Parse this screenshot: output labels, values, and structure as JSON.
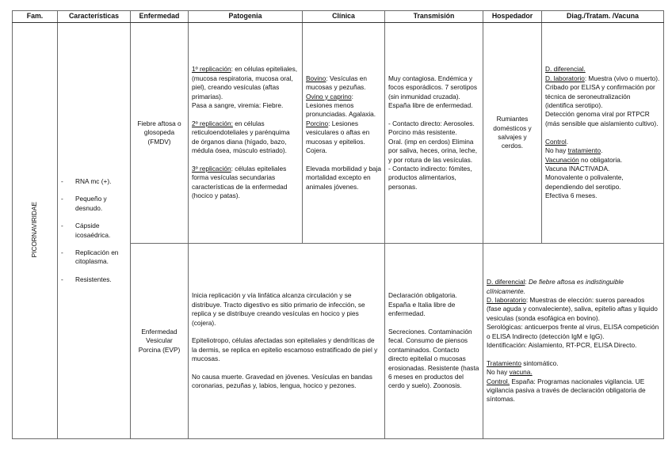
{
  "headers": [
    "Fam.",
    "Características",
    "Enfermedad",
    "Patogenia",
    "Clínica",
    "Transmisión",
    "Hospedador",
    "Diag./Tratam. /Vacuna"
  ],
  "family": "PICORNAVIRIDAE",
  "characteristics": {
    "bullet": "-",
    "items": [
      "RNA mc (+).",
      "Pequeño y desnudo.",
      "Cápside icosaédrica.",
      "Replicación en citoplasma.",
      "Resistentes."
    ]
  },
  "rows": [
    {
      "disease": "Fiebre aftosa o glosopeda (FMDV)",
      "host": "Rumiantes domésticos y salvajes y cerdos.",
      "patogenia": [
        {
          "segs": [
            {
              "t": "1º replicación",
              "s": "u"
            },
            {
              "t": ": en células epiteliales, (mucosa respiratoria, mucosa oral, piel), creando vesículas (aftas primarias)."
            }
          ]
        },
        {
          "segs": [
            {
              "t": "Pasa a sangre, viremia: Fiebre."
            }
          ]
        },
        {
          "gap": true,
          "segs": [
            {
              "t": "2º replicación:",
              "s": "u"
            },
            {
              "t": " en células reticuloendoteliales y parénquima de órganos diana (hígado, bazo, médula ósea, músculo estriado)."
            }
          ]
        },
        {
          "gap": true,
          "segs": [
            {
              "t": "3º replicación",
              "s": "u"
            },
            {
              "t": ": células epiteliales forma vesículas secundarias características de la enfermedad (hocico y patas)."
            }
          ]
        }
      ],
      "clinica": [
        {
          "segs": [
            {
              "t": "Bovino",
              "s": "u"
            },
            {
              "t": ": Vesículas en mucosas y pezuñas."
            }
          ]
        },
        {
          "segs": [
            {
              "t": "Ovino y caprino",
              "s": "u"
            },
            {
              "t": ": Lesiones menos pronunciadas. Agalaxia."
            }
          ]
        },
        {
          "segs": [
            {
              "t": "Porcino",
              "s": "u"
            },
            {
              "t": ": Lesiones vesiculares o aftas en mucosas y epitelios. Cojera."
            }
          ]
        },
        {
          "gap": true,
          "segs": [
            {
              "t": "Elevada morbilidad y baja mortalidad excepto en animales jóvenes."
            }
          ]
        }
      ],
      "transmision": [
        {
          "segs": [
            {
              "t": "Muy contagiosa. Endémica y focos esporádicos. 7 serotipos (sin inmunidad cruzada). España libre de enfermedad."
            }
          ]
        },
        {
          "gap": true,
          "segs": [
            {
              "t": "-      Contacto directo: Aerosoles. Porcino más resistente."
            }
          ]
        },
        {
          "segs": [
            {
              "t": "Oral. (imp en cerdos) Elimina por saliva, heces, orina, leche, y por rotura de las vesículas."
            }
          ]
        },
        {
          "segs": [
            {
              "t": "-      Contacto indirecto: fómites, productos alimentarios, personas."
            }
          ]
        }
      ],
      "diag": [
        {
          "segs": [
            {
              "t": "D. diferencial.",
              "s": "u"
            }
          ]
        },
        {
          "segs": [
            {
              "t": "D. laboratorio",
              "s": "u"
            },
            {
              "t": ": Muestra (vivo o muerto)."
            }
          ]
        },
        {
          "segs": [
            {
              "t": "Cribado por ELISA y confirmación por técnica de seroneutralización (identifica serotipo)."
            }
          ]
        },
        {
          "segs": [
            {
              "t": "Detección genoma viral por RTPCR (más sensible que aislamiento cultivo)."
            }
          ]
        },
        {
          "gap": true,
          "segs": [
            {
              "t": "Control",
              "s": "u"
            },
            {
              "t": "."
            }
          ]
        },
        {
          "segs": [
            {
              "t": "No hay "
            },
            {
              "t": "tratamiento",
              "s": "u"
            },
            {
              "t": "."
            }
          ]
        },
        {
          "segs": [
            {
              "t": "Vacunación",
              "s": "u"
            },
            {
              "t": " no obligatoria."
            }
          ]
        },
        {
          "segs": [
            {
              "t": "Vacuna INACTIVADA."
            }
          ]
        },
        {
          "segs": [
            {
              "t": "Monovalente o polivalente, dependiendo del serotipo."
            }
          ]
        },
        {
          "segs": [
            {
              "t": "Efectiva 6 meses."
            }
          ]
        }
      ]
    },
    {
      "disease": "Enfermedad Vesicular Porcina (EVP)",
      "host": "",
      "patogenia": [
        {
          "segs": [
            {
              "t": "Inicia replicación y vía linfática alcanza circulación y se distribuye. Tracto digestivo es sitio primario de infección, se replica y se distribuye creando vesículas en hocico y pies (cojera)."
            }
          ]
        },
        {
          "gap": true,
          "segs": [
            {
              "t": "Epiteliotropo, células afectadas son epiteliales y dendríticas de la dermis, se replica en epitelio escamoso estratificado de piel y mucosas."
            }
          ]
        },
        {
          "gap": true,
          "segs": [
            {
              "t": "No causa muerte. Gravedad en jóvenes. Vesículas en bandas coronarias, pezuñas y, labios, lengua, hocico y pezones."
            }
          ]
        }
      ],
      "clinica": [],
      "transmision": [
        {
          "segs": [
            {
              "t": "Declaración obligatoria. España e Italia libre de enfermedad."
            }
          ]
        },
        {
          "gap": true,
          "segs": [
            {
              "t": "Secreciones. Contaminación fecal. Consumo de piensos contaminados. Contacto directo epitelial o mucosas erosionadas. Resistente (hasta 6 meses en productos del cerdo y suelo). Zoonosis."
            }
          ]
        }
      ],
      "diag": [
        {
          "segs": [
            {
              "t": "D. diferencial",
              "s": "u"
            },
            {
              "t": ": "
            },
            {
              "t": "De fiebre aftosa es indistinguible clínicamente.",
              "s": "i"
            }
          ]
        },
        {
          "segs": [
            {
              "t": "D. laboratorio",
              "s": "u"
            },
            {
              "t": ": Muestras de elección: sueros pareados (fase aguda y convaleciente), saliva, epitelio aftas y liquido vesiculas (sonda esofágica en bovino)."
            }
          ]
        },
        {
          "segs": [
            {
              "t": "Serológicas: anticuerpos frente al virus, ELISA competición o ELISA Indirecto (detección IgM e IgG)."
            }
          ]
        },
        {
          "segs": [
            {
              "t": "Identificación: Aislamiento, RT-PCR, ELISA Directo."
            }
          ]
        },
        {
          "gap": true,
          "segs": [
            {
              "t": "Tratamiento",
              "s": "u"
            },
            {
              "t": " sintomático."
            }
          ]
        },
        {
          "segs": [
            {
              "t": "No hay "
            },
            {
              "t": "vacuna.",
              "s": "u"
            }
          ]
        },
        {
          "segs": [
            {
              "t": "Control.",
              "s": "u"
            },
            {
              "t": " España: Programas nacionales vigilancia. UE vigilancia pasiva a través de declaración obligatoria de síntomas."
            }
          ]
        }
      ]
    }
  ]
}
